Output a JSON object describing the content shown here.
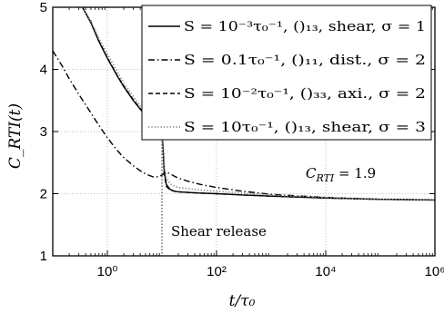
{
  "chart_data": {
    "type": "line",
    "xscale": "log",
    "xlim": [
      0.1,
      1000000
    ],
    "ylim": [
      1,
      5
    ],
    "xlabel": "t/τ₀",
    "ylabel": "C_RTI(t)",
    "grid": "dotted",
    "legend": "top-right",
    "x_ticks": [
      {
        "value": 1,
        "label": "10⁰"
      },
      {
        "value": 100,
        "label": "10²"
      },
      {
        "value": 10000,
        "label": "10⁴"
      },
      {
        "value": 1000000,
        "label": "10⁶"
      }
    ],
    "y_ticks": [
      {
        "value": 1,
        "label": "1"
      },
      {
        "value": 2,
        "label": "2"
      },
      {
        "value": 3,
        "label": "3"
      },
      {
        "value": 4,
        "label": "4"
      },
      {
        "value": 5,
        "label": "5"
      }
    ],
    "series": [
      {
        "name": "S = 10⁻³τ₀⁻¹, ()₁₃, shear, σ = 1",
        "style": "solid",
        "x": [
          0.35,
          0.5,
          0.7,
          1,
          1.5,
          2,
          3,
          4,
          5,
          6,
          7,
          8,
          9,
          10,
          10.5,
          11,
          12,
          14,
          17,
          20,
          30,
          50,
          100,
          300,
          1000,
          10000,
          100000,
          1000000
        ],
        "y": [
          5.0,
          4.75,
          4.45,
          4.18,
          3.9,
          3.72,
          3.5,
          3.36,
          3.26,
          3.18,
          3.12,
          3.07,
          3.03,
          3.0,
          2.7,
          2.35,
          2.15,
          2.07,
          2.04,
          2.03,
          2.02,
          2.01,
          2.0,
          1.98,
          1.96,
          1.93,
          1.91,
          1.9
        ]
      },
      {
        "name": "S = 0.1τ₀⁻¹, ()₁₁, dist., σ = 2",
        "style": "dashdot",
        "x": [
          0.1,
          0.15,
          0.2,
          0.3,
          0.5,
          0.7,
          1,
          1.5,
          2,
          3,
          4,
          5,
          6,
          7,
          8,
          9,
          10,
          11,
          12,
          14,
          17,
          20,
          30,
          50,
          100,
          300,
          1000,
          10000,
          100000,
          1000000
        ],
        "y": [
          4.3,
          4.05,
          3.85,
          3.6,
          3.3,
          3.1,
          2.9,
          2.7,
          2.58,
          2.45,
          2.37,
          2.32,
          2.29,
          2.27,
          2.27,
          2.28,
          2.3,
          2.33,
          2.35,
          2.32,
          2.28,
          2.25,
          2.2,
          2.15,
          2.1,
          2.04,
          1.99,
          1.94,
          1.91,
          1.9
        ]
      },
      {
        "name": "S = 10⁻²τ₀⁻¹, ()₃₃, axi., σ = 2",
        "style": "dashed",
        "x": [
          0.35,
          0.5,
          0.7,
          1,
          1.5,
          2,
          3,
          4,
          5,
          6,
          7,
          8,
          9,
          10,
          10.5,
          11,
          12,
          14,
          17,
          20,
          30,
          50,
          100,
          300,
          1000,
          10000,
          100000,
          1000000
        ],
        "y": [
          5.0,
          4.76,
          4.46,
          4.19,
          3.91,
          3.73,
          3.51,
          3.37,
          3.27,
          3.19,
          3.13,
          3.08,
          3.04,
          3.01,
          2.7,
          2.32,
          2.12,
          2.06,
          2.04,
          2.03,
          2.02,
          2.01,
          2.0,
          1.98,
          1.96,
          1.93,
          1.91,
          1.9
        ]
      },
      {
        "name": "S = 10τ₀⁻¹, ()₁₃, shear, σ = 3",
        "style": "dotted",
        "x": [
          0.35,
          0.5,
          0.7,
          1,
          1.5,
          2,
          3,
          4,
          5,
          6,
          7,
          8,
          9,
          10,
          10.5,
          11,
          12,
          14,
          17,
          20,
          30,
          50,
          100,
          300,
          1000,
          10000,
          100000,
          1000000
        ],
        "y": [
          5.0,
          4.78,
          4.5,
          4.25,
          3.97,
          3.78,
          3.56,
          3.41,
          3.31,
          3.23,
          3.17,
          3.12,
          3.09,
          3.06,
          2.75,
          2.45,
          2.25,
          2.16,
          2.12,
          2.1,
          2.08,
          2.06,
          2.04,
          2.01,
          1.98,
          1.94,
          1.91,
          1.9
        ]
      }
    ],
    "shear_release_x": 10,
    "annotations": {
      "shear_release": "Shear release",
      "crti_prefix": "C",
      "crti_sub": "RTI",
      "crti_value": " = 1.9"
    }
  }
}
